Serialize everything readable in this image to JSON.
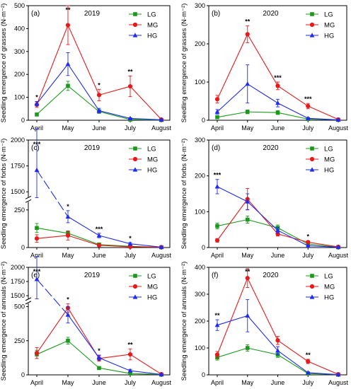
{
  "chart_data": [
    {
      "type": "line",
      "panel_label": "(a)",
      "year": "2019",
      "ylabel": "Seedling emergence of grasses (N·m⁻²)",
      "categories": [
        "April",
        "May",
        "June",
        "July",
        "August"
      ],
      "ylim": [
        0,
        500
      ],
      "yticks": [
        "0",
        "100",
        "200",
        "300",
        "400",
        "500"
      ],
      "series": [
        {
          "name": "LG",
          "values": [
            25,
            150,
            38,
            3,
            1
          ],
          "errors": [
            5,
            20,
            8,
            2,
            1
          ]
        },
        {
          "name": "MG",
          "values": [
            68,
            415,
            110,
            148,
            3
          ],
          "errors": [
            12,
            85,
            25,
            45,
            2
          ]
        },
        {
          "name": "HG",
          "values": [
            72,
            245,
            42,
            8,
            2
          ],
          "errors": [
            10,
            50,
            10,
            3,
            1
          ]
        }
      ],
      "annotations": [
        {
          "x": "April",
          "text": "*"
        },
        {
          "x": "May",
          "text": "**"
        },
        {
          "x": "June",
          "text": "*"
        },
        {
          "x": "July",
          "text": "**"
        }
      ]
    },
    {
      "type": "line",
      "panel_label": "(b)",
      "year": "2020",
      "ylabel": "Seedling emergence of grasses (N·m⁻²)",
      "categories": [
        "April",
        "May",
        "June",
        "July",
        "August"
      ],
      "ylim": [
        0,
        300
      ],
      "yticks": [
        "0",
        "100",
        "200",
        "300"
      ],
      "series": [
        {
          "name": "LG",
          "values": [
            8,
            22,
            20,
            3,
            1
          ],
          "errors": [
            3,
            5,
            5,
            1,
            1
          ]
        },
        {
          "name": "MG",
          "values": [
            55,
            225,
            90,
            37,
            2
          ],
          "errors": [
            10,
            22,
            10,
            7,
            1
          ]
        },
        {
          "name": "HG",
          "values": [
            22,
            95,
            45,
            5,
            1
          ],
          "errors": [
            6,
            50,
            10,
            2,
            1
          ]
        }
      ],
      "annotations": [
        {
          "x": "May",
          "text": "**"
        },
        {
          "x": "June",
          "text": "***"
        },
        {
          "x": "July",
          "text": "***"
        }
      ]
    },
    {
      "type": "line",
      "panel_label": "(c)",
      "year": "2019",
      "ylabel": "Seedling emergence of forbs (N·m⁻²)",
      "categories": [
        "April",
        "May",
        "June",
        "July",
        "August"
      ],
      "ylim": [
        0,
        2000
      ],
      "y_axis_break": [
        300,
        1450
      ],
      "yticks": [
        "0",
        "250",
        "1500",
        "1750",
        "2000"
      ],
      "series": [
        {
          "name": "LG",
          "values": [
            130,
            95,
            20,
            8,
            2
          ],
          "errors": [
            30,
            15,
            5,
            3,
            1
          ]
        },
        {
          "name": "MG",
          "values": [
            60,
            80,
            15,
            5,
            2
          ],
          "errors": [
            25,
            30,
            5,
            2,
            1
          ]
        },
        {
          "name": "HG",
          "values": [
            1710,
            205,
            80,
            25,
            3
          ],
          "errors": [
            400,
            40,
            15,
            8,
            2
          ]
        }
      ],
      "annotations": [
        {
          "x": "April",
          "text": "***"
        },
        {
          "x": "May",
          "text": "*"
        },
        {
          "x": "June",
          "text": "***"
        },
        {
          "x": "July",
          "text": "*"
        }
      ]
    },
    {
      "type": "line",
      "panel_label": "(d)",
      "year": "2020",
      "ylabel": "Seedling emergence of forbs (N·m⁻²)",
      "categories": [
        "April",
        "May",
        "June",
        "July",
        "August"
      ],
      "ylim": [
        0,
        300
      ],
      "yticks": [
        "0",
        "100",
        "200",
        "300"
      ],
      "series": [
        {
          "name": "LG",
          "values": [
            60,
            78,
            55,
            10,
            1
          ],
          "errors": [
            8,
            10,
            8,
            3,
            1
          ]
        },
        {
          "name": "MG",
          "values": [
            20,
            135,
            38,
            15,
            2
          ],
          "errors": [
            5,
            30,
            6,
            4,
            1
          ]
        },
        {
          "name": "HG",
          "values": [
            170,
            128,
            48,
            5,
            1
          ],
          "errors": [
            20,
            22,
            8,
            2,
            1
          ]
        }
      ],
      "annotations": [
        {
          "x": "April",
          "text": "***"
        },
        {
          "x": "July",
          "text": "*"
        }
      ]
    },
    {
      "type": "line",
      "panel_label": "(e)",
      "year": "2019",
      "ylabel": "Seedling emergence of annuals (N·m⁻²)",
      "categories": [
        "April",
        "May",
        "June",
        "July",
        "August"
      ],
      "ylim": [
        0,
        2000
      ],
      "y_axis_break": [
        520,
        1450
      ],
      "yticks": [
        "0",
        "250",
        "500",
        "1500",
        "1750",
        "2000"
      ],
      "series": [
        {
          "name": "LG",
          "values": [
            150,
            250,
            50,
            10,
            2
          ],
          "errors": [
            30,
            25,
            10,
            3,
            1
          ]
        },
        {
          "name": "MG",
          "values": [
            160,
            490,
            120,
            150,
            5
          ],
          "errors": [
            40,
            30,
            20,
            40,
            2
          ]
        },
        {
          "name": "HG",
          "values": [
            1790,
            440,
            125,
            30,
            3
          ],
          "errors": [
            400,
            60,
            20,
            10,
            2
          ]
        }
      ],
      "annotations": [
        {
          "x": "April",
          "text": "***"
        },
        {
          "x": "May",
          "text": "*"
        },
        {
          "x": "June",
          "text": "*"
        },
        {
          "x": "July",
          "text": "**"
        }
      ]
    },
    {
      "type": "line",
      "panel_label": "(f)",
      "year": "2020",
      "ylabel": "Seedling emergence of annuals (N·m⁻²)",
      "categories": [
        "April",
        "May",
        "June",
        "July",
        "August"
      ],
      "ylim": [
        0,
        400
      ],
      "yticks": [
        "0",
        "100",
        "200",
        "300",
        "400"
      ],
      "series": [
        {
          "name": "LG",
          "values": [
            65,
            100,
            75,
            5,
            1
          ],
          "errors": [
            10,
            12,
            10,
            2,
            1
          ]
        },
        {
          "name": "MG",
          "values": [
            75,
            360,
            128,
            50,
            2
          ],
          "errors": [
            12,
            35,
            15,
            8,
            1
          ]
        },
        {
          "name": "HG",
          "values": [
            185,
            220,
            90,
            8,
            1
          ],
          "errors": [
            20,
            60,
            15,
            3,
            1
          ]
        }
      ],
      "annotations": [
        {
          "x": "April",
          "text": "**"
        },
        {
          "x": "May",
          "text": "**"
        },
        {
          "x": "July",
          "text": "**"
        }
      ]
    }
  ],
  "colors": {
    "LG": "#1a9a1a",
    "MG": "#e8191b",
    "HG": "#1f2bf0"
  },
  "markers": {
    "LG": "square",
    "MG": "circle",
    "HG": "triangle"
  }
}
